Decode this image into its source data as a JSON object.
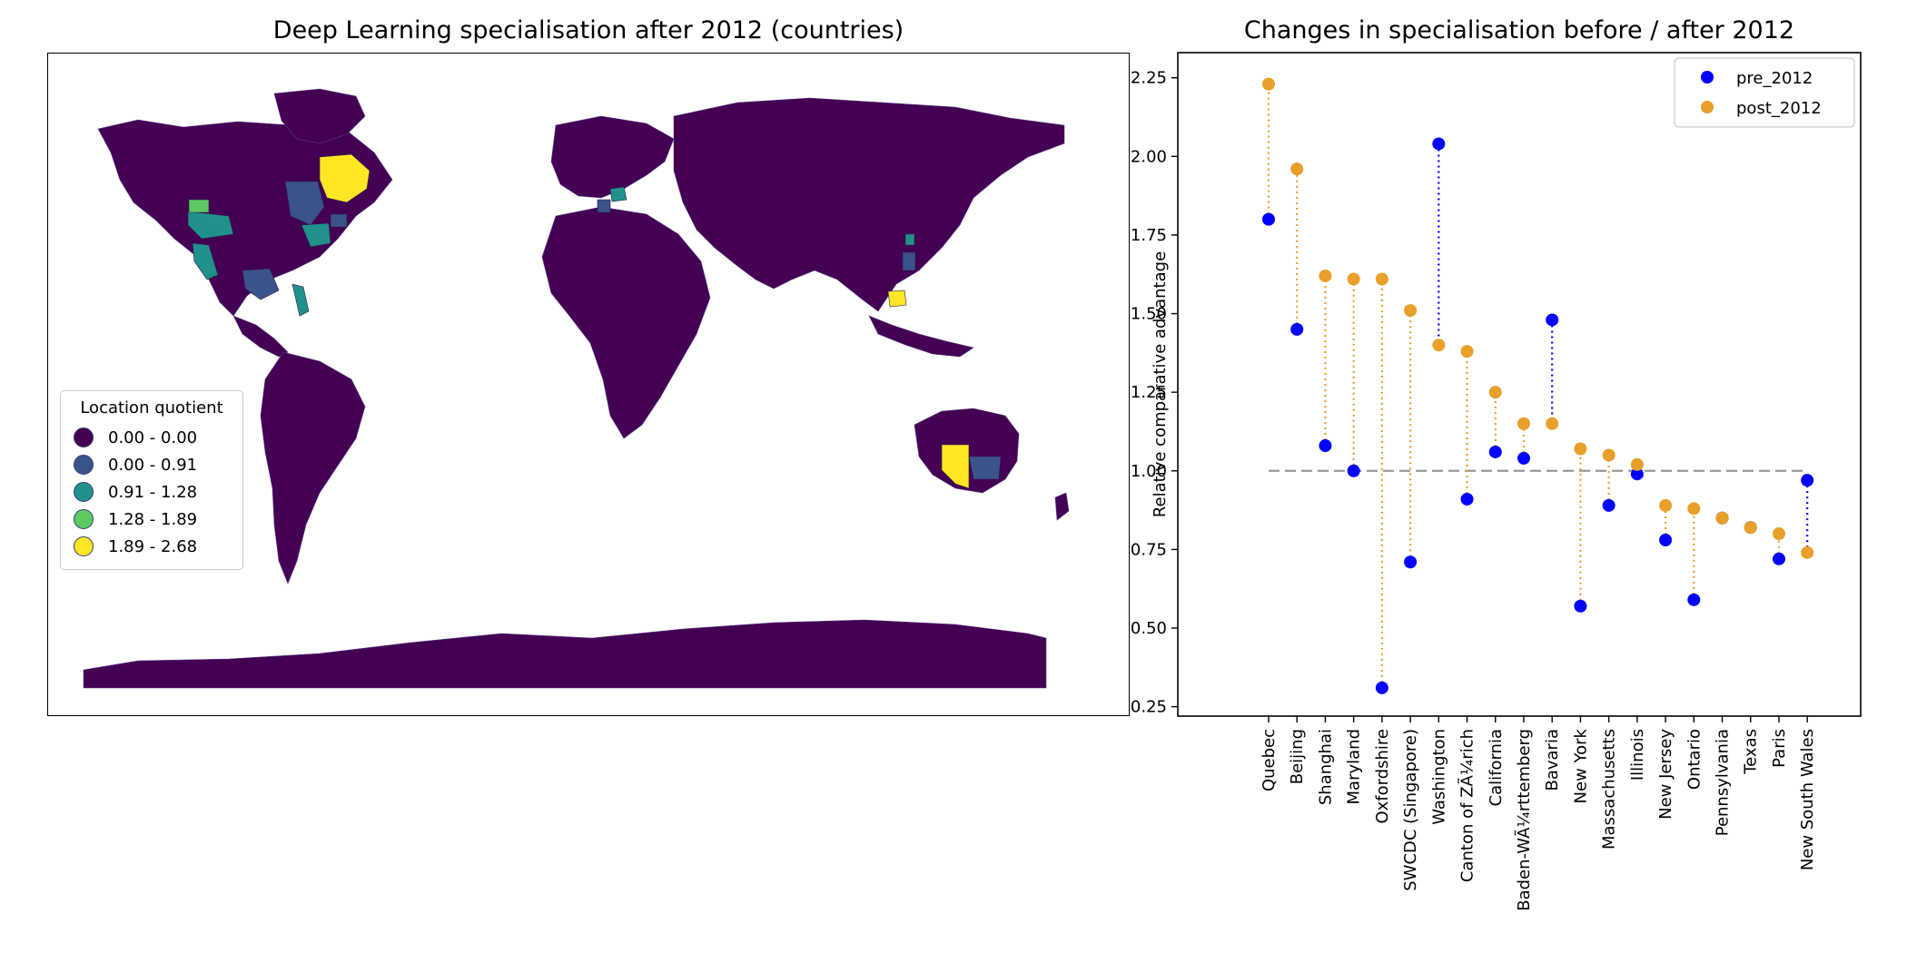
{
  "map_panel": {
    "title": "Deep Learning specialisation after 2012 (countries)",
    "legend_title": "Location quotient",
    "legend_items": [
      {
        "label": "0.00 - 0.00",
        "color": "#440154"
      },
      {
        "label": "0.00 - 0.91",
        "color": "#3b528b"
      },
      {
        "label": "0.91 - 1.28",
        "color": "#21918c"
      },
      {
        "label": "1.28 - 1.89",
        "color": "#5ec962"
      },
      {
        "label": "1.89 - 2.68",
        "color": "#fde725"
      }
    ],
    "base_color": "#440154"
  },
  "chart_data": {
    "type": "scatter",
    "title": "Changes in specialisation before / after 2012",
    "ylabel": "Relative comparative advantage",
    "xlabel": "",
    "ylim": [
      0.22,
      2.33
    ],
    "yticks": [
      0.25,
      0.5,
      0.75,
      1.0,
      1.25,
      1.5,
      1.75,
      2.0,
      2.25
    ],
    "ytick_labels": [
      "0.25",
      "0.50",
      "0.75",
      "1.00",
      "1.25",
      "1.50",
      "1.75",
      "2.00",
      "2.25"
    ],
    "reference_line": 1.0,
    "legend_position": "top-right",
    "categories": [
      "Quebec",
      "Beijing",
      "Shanghai",
      "Maryland",
      "Oxfordshire",
      "SWCDC (Singapore)",
      "Washington",
      "Canton of ZÃ¼rich",
      "California",
      "Baden-WÃ¼rttemberg",
      "Bavaria",
      "New York",
      "Massachusetts",
      "Illinois",
      "New Jersey",
      "Ontario",
      "Pennsylvania",
      "Texas",
      "Paris",
      "New South Wales"
    ],
    "series": [
      {
        "name": "pre_2012",
        "color": "#0000ff",
        "values": [
          1.8,
          1.45,
          1.08,
          1.0,
          0.31,
          0.71,
          2.04,
          0.91,
          1.06,
          1.04,
          1.48,
          0.57,
          0.89,
          0.99,
          0.78,
          0.59,
          0.85,
          0.82,
          0.72,
          0.97
        ]
      },
      {
        "name": "post_2012",
        "color": "#e8a02a",
        "values": [
          2.23,
          1.96,
          1.62,
          1.61,
          1.61,
          1.51,
          1.4,
          1.38,
          1.25,
          1.15,
          1.15,
          1.07,
          1.05,
          1.02,
          0.89,
          0.88,
          0.85,
          0.82,
          0.8,
          0.74
        ]
      }
    ]
  }
}
